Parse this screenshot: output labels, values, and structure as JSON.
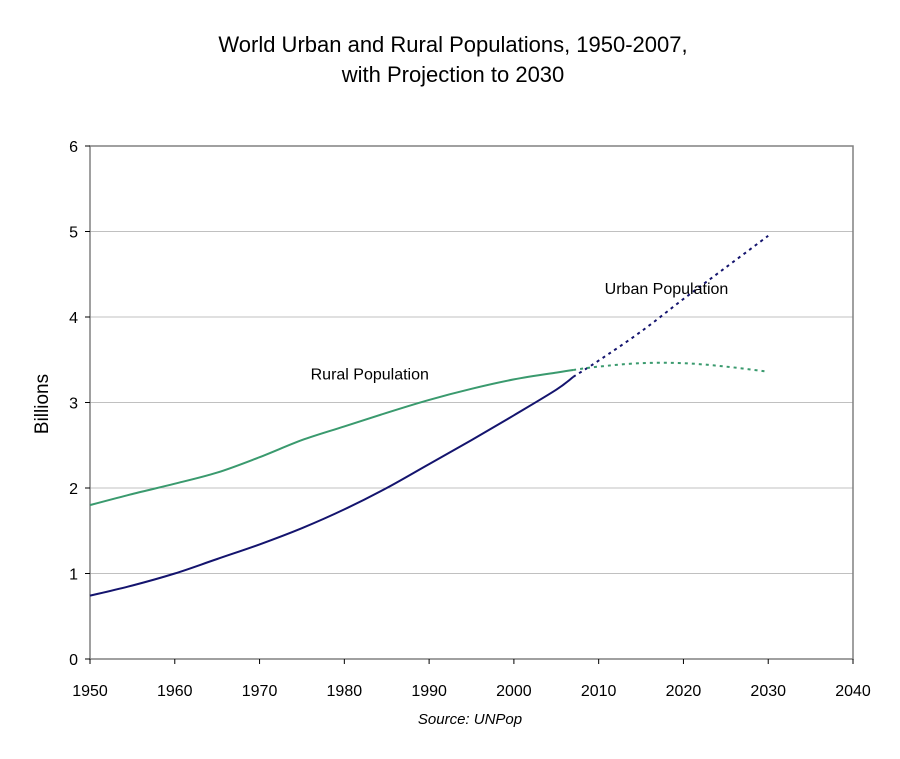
{
  "chart_data": {
    "type": "line",
    "title_line1": "World Urban and Rural Populations, 1950-2007,",
    "title_line2": "with Projection to 2030",
    "xlabel": "",
    "ylabel": "Billions",
    "source": "Source: UNPop",
    "xlim": [
      1950,
      2040
    ],
    "ylim": [
      0,
      6
    ],
    "xticks": [
      1950,
      1960,
      1970,
      1980,
      1990,
      2000,
      2010,
      2020,
      2030,
      2040
    ],
    "yticks": [
      0,
      1,
      2,
      3,
      4,
      5,
      6
    ],
    "grid": "horizontal",
    "colors": {
      "urban": "#14146e",
      "rural": "#3a9a6e",
      "grid": "#c0c0c0",
      "frame": "#808080"
    },
    "annotations": [
      {
        "text": "Urban Population",
        "x": 2018,
        "y": 4.27
      },
      {
        "text": "Rural Population",
        "x": 1983,
        "y": 3.27
      }
    ],
    "series": [
      {
        "key": "urban",
        "historical": {
          "x": [
            1950,
            1955,
            1960,
            1965,
            1970,
            1975,
            1980,
            1985,
            1990,
            1995,
            2000,
            2005,
            2007
          ],
          "y": [
            0.74,
            0.86,
            1.0,
            1.17,
            1.34,
            1.53,
            1.75,
            2.0,
            2.28,
            2.56,
            2.85,
            3.15,
            3.3
          ]
        },
        "projection": {
          "x": [
            2007,
            2010,
            2015,
            2020,
            2025,
            2030
          ],
          "y": [
            3.3,
            3.49,
            3.83,
            4.21,
            4.58,
            4.95
          ]
        }
      },
      {
        "key": "rural",
        "historical": {
          "x": [
            1950,
            1955,
            1960,
            1965,
            1970,
            1975,
            1980,
            1985,
            1990,
            1995,
            2000,
            2005,
            2007
          ],
          "y": [
            1.8,
            1.93,
            2.05,
            2.18,
            2.36,
            2.56,
            2.72,
            2.88,
            3.03,
            3.16,
            3.27,
            3.35,
            3.38
          ]
        },
        "projection": {
          "x": [
            2007,
            2010,
            2015,
            2020,
            2025,
            2030
          ],
          "y": [
            3.38,
            3.42,
            3.46,
            3.46,
            3.42,
            3.36
          ]
        }
      }
    ]
  }
}
